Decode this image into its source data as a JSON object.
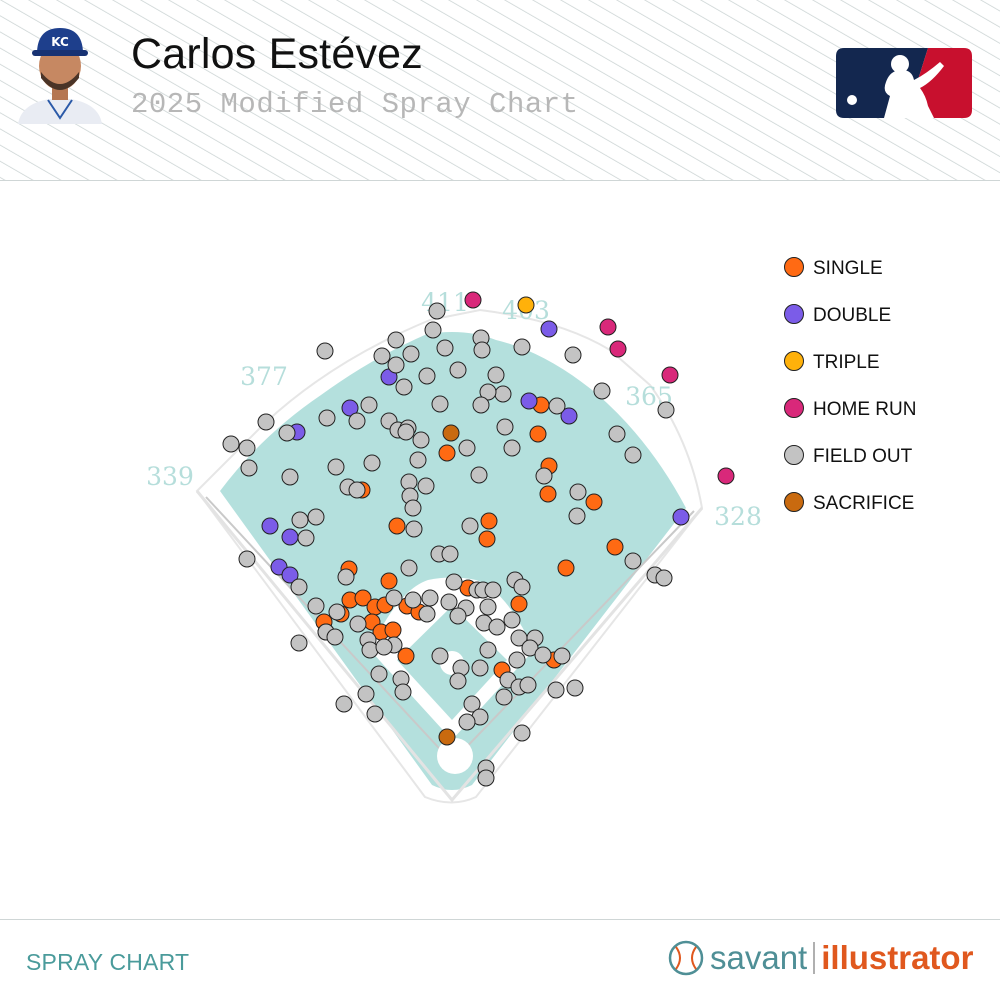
{
  "header": {
    "player_name": "Carlos Estévez",
    "subtitle": "2025 Modified Spray Chart",
    "avatar_icon": "player-headshot-icon",
    "league_logo_icon": "mlb-logo-icon"
  },
  "chart_data": {
    "type": "scatter",
    "title": "2025 Modified Spray Chart",
    "legend_position": "top-right",
    "legend": [
      {
        "key": "single",
        "label": "SINGLE",
        "color": "#ff6a13"
      },
      {
        "key": "double",
        "label": "DOUBLE",
        "color": "#7b5ce8"
      },
      {
        "key": "triple",
        "label": "TRIPLE",
        "color": "#ffb10a"
      },
      {
        "key": "home_run",
        "label": "HOME RUN",
        "color": "#d9287a"
      },
      {
        "key": "field_out",
        "label": "FIELD OUT",
        "color": "#c3c3c3"
      },
      {
        "key": "sacrifice",
        "label": "SACRIFICE",
        "color": "#c96a0f"
      }
    ],
    "fence_distances": [
      {
        "label": "339"
      },
      {
        "label": "377"
      },
      {
        "label": "411"
      },
      {
        "label": "403"
      },
      {
        "label": "365"
      },
      {
        "label": "328"
      }
    ],
    "series": [
      {
        "name": "SINGLE",
        "key": "single",
        "points": [
          [
            447,
            453
          ],
          [
            489,
            521
          ],
          [
            487,
            539
          ],
          [
            397,
            526
          ],
          [
            549,
            466
          ],
          [
            548,
            494
          ],
          [
            594,
            502
          ],
          [
            538,
            434
          ],
          [
            541,
            405
          ],
          [
            615,
            547
          ],
          [
            566,
            568
          ],
          [
            349,
            569
          ],
          [
            389,
            581
          ],
          [
            350,
            600
          ],
          [
            363,
            598
          ],
          [
            375,
            607
          ],
          [
            385,
            605
          ],
          [
            341,
            614
          ],
          [
            324,
            622
          ],
          [
            372,
            622
          ],
          [
            381,
            632
          ],
          [
            393,
            630
          ],
          [
            407,
            606
          ],
          [
            419,
            612
          ],
          [
            468,
            588
          ],
          [
            519,
            604
          ],
          [
            406,
            656
          ],
          [
            502,
            670
          ],
          [
            554,
            660
          ],
          [
            326,
            632
          ],
          [
            362,
            490
          ]
        ]
      },
      {
        "name": "DOUBLE",
        "key": "double",
        "points": [
          [
            389,
            377
          ],
          [
            350,
            408
          ],
          [
            297,
            432
          ],
          [
            270,
            526
          ],
          [
            290,
            537
          ],
          [
            279,
            567
          ],
          [
            290,
            575
          ],
          [
            529,
            401
          ],
          [
            569,
            416
          ],
          [
            681,
            517
          ],
          [
            549,
            329
          ]
        ]
      },
      {
        "name": "TRIPLE",
        "key": "triple",
        "points": [
          [
            526,
            305
          ]
        ]
      },
      {
        "name": "HOME RUN",
        "key": "home_run",
        "points": [
          [
            473,
            300
          ],
          [
            608,
            327
          ],
          [
            618,
            349
          ],
          [
            670,
            375
          ],
          [
            726,
            476
          ]
        ]
      },
      {
        "name": "FIELD OUT",
        "key": "field_out",
        "points": [
          [
            437,
            311
          ],
          [
            433,
            330
          ],
          [
            396,
            340
          ],
          [
            445,
            348
          ],
          [
            481,
            338
          ],
          [
            325,
            351
          ],
          [
            382,
            356
          ],
          [
            411,
            354
          ],
          [
            482,
            350
          ],
          [
            522,
            347
          ],
          [
            573,
            355
          ],
          [
            396,
            365
          ],
          [
            427,
            376
          ],
          [
            458,
            370
          ],
          [
            496,
            375
          ],
          [
            503,
            394
          ],
          [
            404,
            387
          ],
          [
            440,
            404
          ],
          [
            488,
            392
          ],
          [
            481,
            405
          ],
          [
            602,
            391
          ],
          [
            666,
            410
          ],
          [
            266,
            422
          ],
          [
            287,
            433
          ],
          [
            327,
            418
          ],
          [
            357,
            421
          ],
          [
            369,
            405
          ],
          [
            389,
            421
          ],
          [
            398,
            430
          ],
          [
            408,
            428
          ],
          [
            406,
            432
          ],
          [
            505,
            427
          ],
          [
            557,
            406
          ],
          [
            617,
            434
          ],
          [
            633,
            455
          ],
          [
            231,
            444
          ],
          [
            247,
            448
          ],
          [
            249,
            468
          ],
          [
            336,
            467
          ],
          [
            372,
            463
          ],
          [
            418,
            460
          ],
          [
            421,
            440
          ],
          [
            467,
            448
          ],
          [
            512,
            448
          ],
          [
            290,
            477
          ],
          [
            348,
            487
          ],
          [
            357,
            490
          ],
          [
            409,
            482
          ],
          [
            410,
            496
          ],
          [
            426,
            486
          ],
          [
            479,
            475
          ],
          [
            544,
            476
          ],
          [
            578,
            492
          ],
          [
            300,
            520
          ],
          [
            316,
            517
          ],
          [
            306,
            538
          ],
          [
            413,
            508
          ],
          [
            414,
            529
          ],
          [
            470,
            526
          ],
          [
            577,
            516
          ],
          [
            439,
            554
          ],
          [
            450,
            554
          ],
          [
            247,
            559
          ],
          [
            409,
            568
          ],
          [
            454,
            582
          ],
          [
            477,
            590
          ],
          [
            483,
            590
          ],
          [
            493,
            590
          ],
          [
            515,
            580
          ],
          [
            522,
            587
          ],
          [
            299,
            587
          ],
          [
            316,
            606
          ],
          [
            337,
            612
          ],
          [
            358,
            624
          ],
          [
            394,
            598
          ],
          [
            413,
            600
          ],
          [
            430,
            598
          ],
          [
            449,
            602
          ],
          [
            466,
            608
          ],
          [
            458,
            616
          ],
          [
            488,
            607
          ],
          [
            512,
            620
          ],
          [
            427,
            614
          ],
          [
            484,
            623
          ],
          [
            497,
            627
          ],
          [
            519,
            638
          ],
          [
            535,
            638
          ],
          [
            299,
            643
          ],
          [
            326,
            632
          ],
          [
            335,
            637
          ],
          [
            368,
            640
          ],
          [
            370,
            650
          ],
          [
            394,
            645
          ],
          [
            440,
            656
          ],
          [
            488,
            650
          ],
          [
            530,
            648
          ],
          [
            543,
            655
          ],
          [
            562,
            656
          ],
          [
            517,
            660
          ],
          [
            461,
            668
          ],
          [
            480,
            668
          ],
          [
            508,
            680
          ],
          [
            519,
            687
          ],
          [
            528,
            685
          ],
          [
            379,
            674
          ],
          [
            401,
            679
          ],
          [
            458,
            681
          ],
          [
            472,
            704
          ],
          [
            556,
            690
          ],
          [
            575,
            688
          ],
          [
            480,
            717
          ],
          [
            504,
            697
          ],
          [
            344,
            704
          ],
          [
            366,
            694
          ],
          [
            403,
            692
          ],
          [
            375,
            714
          ],
          [
            467,
            722
          ],
          [
            522,
            733
          ],
          [
            486,
            768
          ],
          [
            486,
            778
          ],
          [
            655,
            575
          ],
          [
            664,
            578
          ],
          [
            633,
            561
          ],
          [
            346,
            577
          ],
          [
            384,
            647
          ]
        ]
      },
      {
        "name": "SACRIFICE",
        "key": "sacrifice",
        "points": [
          [
            451,
            433
          ],
          [
            447,
            737
          ]
        ]
      }
    ]
  },
  "footer": {
    "label": "SPRAY CHART",
    "brand_icon": "baseball-icon",
    "brand_part1": "savant",
    "brand_part2": "illustrator"
  }
}
